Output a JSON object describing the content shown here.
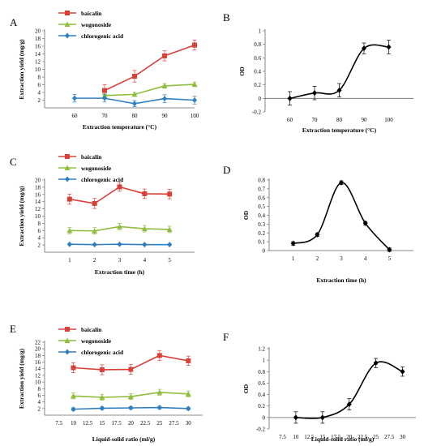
{
  "chart_data": [
    {
      "panel": "A",
      "type": "line",
      "xlabel": "Extraction temperature (°C)",
      "ylabel": "Extraction yield (mg/g)",
      "categories": [
        "60",
        "70",
        "80",
        "90",
        "100"
      ],
      "xlim": [
        0,
        5
      ],
      "ylim": [
        0,
        20
      ],
      "yticks": [
        2,
        4,
        6,
        8,
        10,
        12,
        14,
        16,
        18,
        20
      ],
      "yticklabels": [
        "2",
        "4",
        "6",
        "8",
        "10",
        "12",
        "14",
        "16",
        "18",
        "20"
      ],
      "legend_position": "top-left",
      "series": [
        {
          "name": "baicalin",
          "color": "#d9403a",
          "marker": "square",
          "x": [
            2,
            3,
            4,
            5
          ],
          "values": [
            4.5,
            8.2,
            13.5,
            16.3
          ],
          "errors": [
            1.5,
            1.5,
            1.3,
            1.3
          ]
        },
        {
          "name": "wogonoside",
          "color": "#8fbe3c",
          "marker": "triangle",
          "x": [
            2,
            3,
            4,
            5
          ],
          "values": [
            3.2,
            3.5,
            5.7,
            6.1
          ],
          "errors": [
            0.5,
            0.5,
            0.6,
            0.6
          ]
        },
        {
          "name": "chlorogenic acid",
          "color": "#2f7fc0",
          "marker": "diamond",
          "x": [
            1,
            2,
            3,
            4,
            5
          ],
          "values": [
            2.5,
            2.5,
            1.1,
            2.4,
            2.0
          ],
          "errors": [
            1.0,
            1.0,
            0.8,
            1.0,
            1.0
          ]
        }
      ]
    },
    {
      "panel": "B",
      "type": "line",
      "xlabel": "Extraction temperature (°C)",
      "ylabel": "OD",
      "categories": [
        "60",
        "70",
        "80",
        "90",
        "100"
      ],
      "xlim": [
        0,
        6
      ],
      "ylim": [
        -0.2,
        1.0
      ],
      "yticks": [
        -0.2,
        0,
        0.2,
        0.4,
        0.6,
        0.8,
        1
      ],
      "yticklabels": [
        "-0.2",
        "0",
        "0.2",
        "0.4",
        "0.6",
        "0.8",
        "1"
      ],
      "series": [
        {
          "color": "#000000",
          "marker": "diamond",
          "smooth": true,
          "x": [
            1,
            2,
            3,
            4,
            5
          ],
          "values": [
            0.0,
            0.08,
            0.12,
            0.74,
            0.76
          ],
          "errors": [
            0.1,
            0.1,
            0.1,
            0.08,
            0.1
          ]
        }
      ]
    },
    {
      "panel": "C",
      "type": "line",
      "xlabel": "Extraction time (h)",
      "ylabel": "Extraction yield (mg/g)",
      "categories": [
        "1",
        "2",
        "3",
        "4",
        "5"
      ],
      "xlim": [
        0,
        6
      ],
      "ylim": [
        0,
        20
      ],
      "yticks": [
        2,
        4,
        6,
        8,
        10,
        12,
        14,
        16,
        18,
        20
      ],
      "yticklabels": [
        "2",
        "4",
        "6",
        "8",
        "10",
        "12",
        "14",
        "16",
        "18",
        "20"
      ],
      "legend_position": "top-left",
      "series": [
        {
          "name": "baicalin",
          "color": "#d9403a",
          "marker": "square",
          "x": [
            1,
            2,
            3,
            4,
            5
          ],
          "values": [
            14.7,
            13.5,
            18.1,
            16.2,
            16.1
          ],
          "errors": [
            1.4,
            1.4,
            1.2,
            1.3,
            1.3
          ]
        },
        {
          "name": "wogonoside",
          "color": "#8fbe3c",
          "marker": "triangle",
          "x": [
            1,
            2,
            3,
            4,
            5
          ],
          "values": [
            6.0,
            5.9,
            7.1,
            6.5,
            6.3
          ],
          "errors": [
            0.9,
            0.9,
            0.9,
            0.9,
            0.9
          ]
        },
        {
          "name": "chlorogenic acid",
          "color": "#2f7fc0",
          "marker": "diamond",
          "x": [
            1,
            2,
            3,
            4,
            5
          ],
          "values": [
            2.2,
            2.1,
            2.2,
            2.1,
            2.1
          ],
          "errors": [
            0.2,
            0.2,
            0.2,
            0.2,
            0.2
          ]
        }
      ]
    },
    {
      "panel": "D",
      "type": "line",
      "xlabel": "Extraction time (h)",
      "ylabel": "OD",
      "categories": [
        "1",
        "2",
        "3",
        "4",
        "5"
      ],
      "xlim": [
        0,
        6
      ],
      "ylim": [
        0,
        0.8
      ],
      "yticks": [
        0,
        0.1,
        0.2,
        0.3,
        0.4,
        0.5,
        0.6,
        0.7,
        0.8
      ],
      "yticklabels": [
        "0",
        "0.1",
        "0.2",
        "0.3",
        "0.4",
        "0.5",
        "0.6",
        "0.7",
        "0.8"
      ],
      "series": [
        {
          "color": "#000000",
          "marker": "diamond",
          "smooth": true,
          "x": [
            1,
            2,
            3,
            4,
            5
          ],
          "values": [
            0.08,
            0.18,
            0.77,
            0.31,
            0.01
          ],
          "errors": [
            0.02,
            0.02,
            0.02,
            0.02,
            0.02
          ]
        }
      ]
    },
    {
      "panel": "E",
      "type": "line",
      "xlabel": "Liquid-solid ratio (ml/g)",
      "ylabel": "Extraction yield (mg/g)",
      "categories": [
        "7.5",
        "10",
        "12.5",
        "15",
        "17.5",
        "20",
        "22.5",
        "25",
        "27.5",
        "30"
      ],
      "xlim": [
        0,
        11
      ],
      "ylim": [
        0,
        22
      ],
      "yticks": [
        2,
        4,
        6,
        8,
        10,
        12,
        14,
        16,
        18,
        20,
        22
      ],
      "yticklabels": [
        "2",
        "4",
        "6",
        "8",
        "10",
        "12",
        "14",
        "16",
        "18",
        "20",
        "22"
      ],
      "legend_position": "top-left",
      "series": [
        {
          "name": "baicalin",
          "color": "#d9403a",
          "marker": "square",
          "x": [
            2,
            4,
            6,
            8,
            10
          ],
          "values": [
            14.3,
            13.7,
            13.8,
            18.0,
            16.4
          ],
          "errors": [
            1.5,
            1.5,
            1.5,
            1.5,
            1.4
          ]
        },
        {
          "name": "wogonoside",
          "color": "#8fbe3c",
          "marker": "triangle",
          "x": [
            2,
            4,
            6,
            8,
            10
          ],
          "values": [
            5.8,
            5.4,
            5.6,
            6.9,
            6.4
          ],
          "errors": [
            0.9,
            0.9,
            0.9,
            0.9,
            0.9
          ]
        },
        {
          "name": "chlorogenic acid",
          "color": "#2f7fc0",
          "marker": "diamond",
          "x": [
            2,
            4,
            6,
            8,
            10
          ],
          "values": [
            1.8,
            2.1,
            2.2,
            2.3,
            2.0
          ],
          "errors": [
            0.4,
            0.4,
            0.4,
            0.4,
            0.4
          ]
        }
      ]
    },
    {
      "panel": "F",
      "type": "line",
      "xlabel": "Liquid-solid ratio (ml/g)",
      "ylabel": "OD",
      "categories": [
        "7.5",
        "10",
        "12.5",
        "15",
        "17.5",
        "20",
        "22.5",
        "25",
        "27.5",
        "30"
      ],
      "xlim": [
        0,
        11
      ],
      "ylim": [
        -0.2,
        1.2
      ],
      "yticks": [
        -0.2,
        0,
        0.2,
        0.4,
        0.6,
        0.8,
        1,
        1.2
      ],
      "yticklabels": [
        "-0.2",
        "0",
        "0.2",
        "0.4",
        "0.6",
        "0.8",
        "1",
        "1.2"
      ],
      "series": [
        {
          "color": "#000000",
          "marker": "diamond",
          "smooth": true,
          "x": [
            2,
            4,
            6,
            8,
            10
          ],
          "values": [
            0.0,
            0.0,
            0.23,
            0.95,
            0.8
          ],
          "errors": [
            0.1,
            0.1,
            0.1,
            0.08,
            0.08
          ]
        }
      ]
    }
  ]
}
